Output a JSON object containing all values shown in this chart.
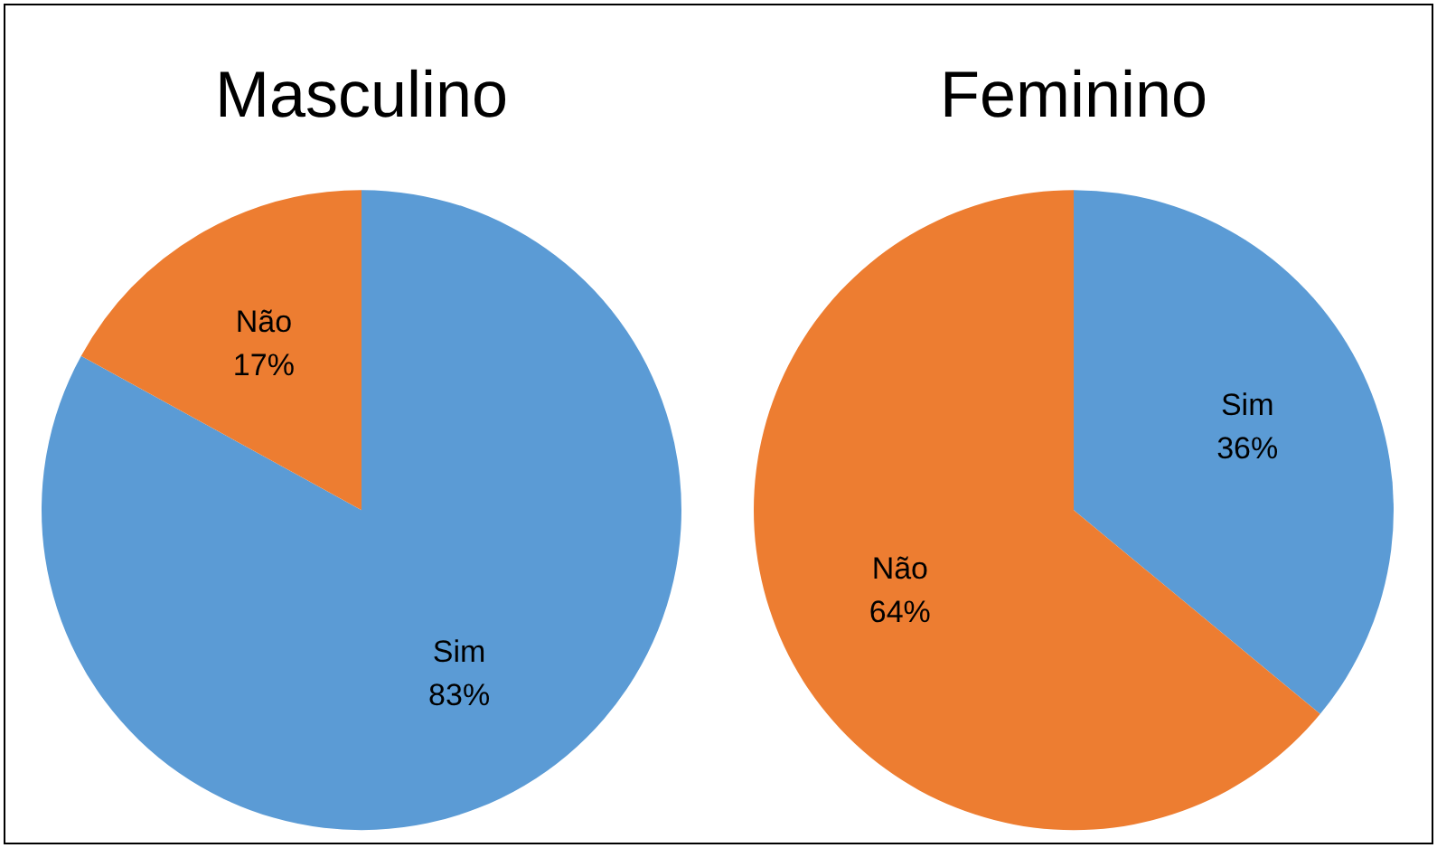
{
  "chart_data": [
    {
      "type": "pie",
      "title": "Masculino",
      "categories": [
        "Sim",
        "Não"
      ],
      "values": [
        83,
        17
      ],
      "colors": [
        "#5b9bd5",
        "#ed7d31"
      ],
      "value_labels": [
        "83%",
        "17%"
      ]
    },
    {
      "type": "pie",
      "title": "Feminino",
      "categories": [
        "Sim",
        "Não"
      ],
      "values": [
        36,
        64
      ],
      "colors": [
        "#5b9bd5",
        "#ed7d31"
      ],
      "value_labels": [
        "36%",
        "64%"
      ]
    }
  ]
}
